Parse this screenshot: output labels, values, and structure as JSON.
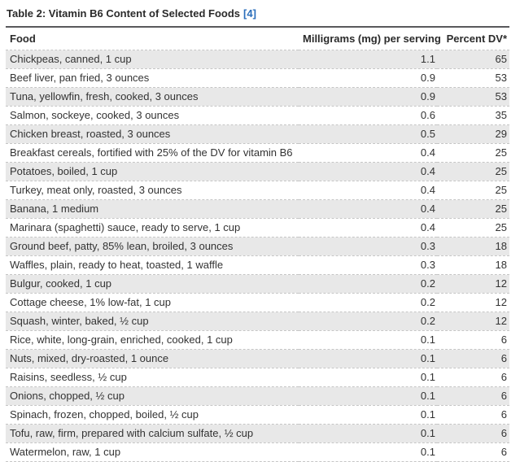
{
  "caption": {
    "title": "Table 2: Vitamin B6 Content of Selected Foods",
    "reference": "[4]"
  },
  "chart_data": {
    "type": "table",
    "title": "Table 2: Vitamin B6 Content of Selected Foods [4]",
    "columns": [
      "Food",
      "Milligrams (mg) per serving",
      "Percent DV*"
    ],
    "rows": [
      [
        "Chickpeas, canned, 1 cup",
        "1.1",
        "65"
      ],
      [
        "Beef liver, pan fried, 3 ounces",
        "0.9",
        "53"
      ],
      [
        "Tuna, yellowfin, fresh, cooked, 3 ounces",
        "0.9",
        "53"
      ],
      [
        "Salmon, sockeye, cooked, 3 ounces",
        "0.6",
        "35"
      ],
      [
        "Chicken breast, roasted, 3 ounces",
        "0.5",
        "29"
      ],
      [
        "Breakfast cereals, fortified with 25% of the DV for vitamin B6",
        "0.4",
        "25"
      ],
      [
        "Potatoes, boiled, 1 cup",
        "0.4",
        "25"
      ],
      [
        "Turkey, meat only, roasted, 3 ounces",
        "0.4",
        "25"
      ],
      [
        "Banana, 1 medium",
        "0.4",
        "25"
      ],
      [
        "Marinara (spaghetti) sauce, ready to serve, 1 cup",
        "0.4",
        "25"
      ],
      [
        "Ground beef, patty, 85% lean, broiled, 3 ounces",
        "0.3",
        "18"
      ],
      [
        "Waffles, plain, ready to heat, toasted, 1 waffle",
        "0.3",
        "18"
      ],
      [
        "Bulgur, cooked, 1 cup",
        "0.2",
        "12"
      ],
      [
        "Cottage cheese, 1% low-fat, 1 cup",
        "0.2",
        "12"
      ],
      [
        "Squash, winter, baked, ½ cup",
        "0.2",
        "12"
      ],
      [
        "Rice, white, long-grain, enriched, cooked, 1 cup",
        "0.1",
        "6"
      ],
      [
        "Nuts, mixed, dry-roasted, 1 ounce",
        "0.1",
        "6"
      ],
      [
        "Raisins, seedless, ½ cup",
        "0.1",
        "6"
      ],
      [
        "Onions, chopped, ½ cup",
        "0.1",
        "6"
      ],
      [
        "Spinach, frozen, chopped, boiled, ½ cup",
        "0.1",
        "6"
      ],
      [
        "Tofu, raw, firm, prepared with calcium sulfate, ½ cup",
        "0.1",
        "6"
      ],
      [
        "Watermelon, raw, 1 cup",
        "0.1",
        "6"
      ]
    ]
  },
  "colors": {
    "link_blue": "#2a6ebb",
    "zebra_row_gray": "#e8e8e8",
    "dashed_border_gray": "#c6c6c6",
    "caption_rule_gray": "#59595c",
    "text": "#333333"
  }
}
